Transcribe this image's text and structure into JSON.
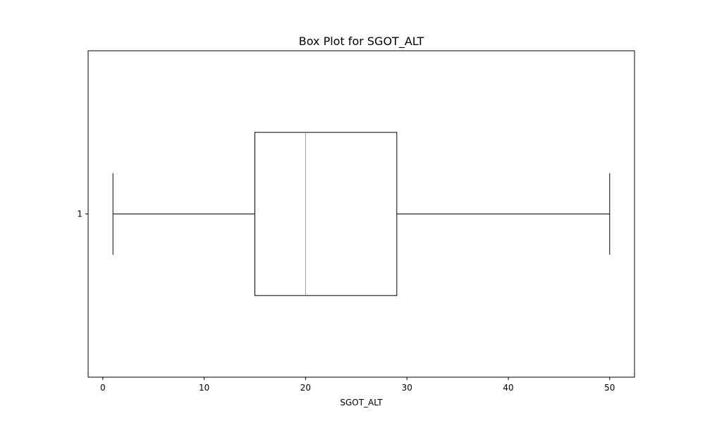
{
  "chart_data": {
    "type": "boxplot",
    "orientation": "horizontal",
    "title": "Box Plot for SGOT_ALT",
    "xlabel": "SGOT_ALT",
    "ylabel": "",
    "xlim": [
      -1.45,
      52.45
    ],
    "ylim": [
      0.5,
      1.5
    ],
    "x_ticks": [
      0,
      10,
      20,
      30,
      40,
      50
    ],
    "y_ticks": [
      1
    ],
    "grid": false,
    "boxes": [
      {
        "label": "1",
        "whisker_low": 1,
        "q1": 15,
        "median": 20,
        "q3": 29,
        "whisker_high": 50,
        "outliers": []
      }
    ],
    "colors": {
      "box": "#000000",
      "median": "#ff7f0e",
      "whisker": "#000000",
      "frame": "#000000"
    }
  }
}
